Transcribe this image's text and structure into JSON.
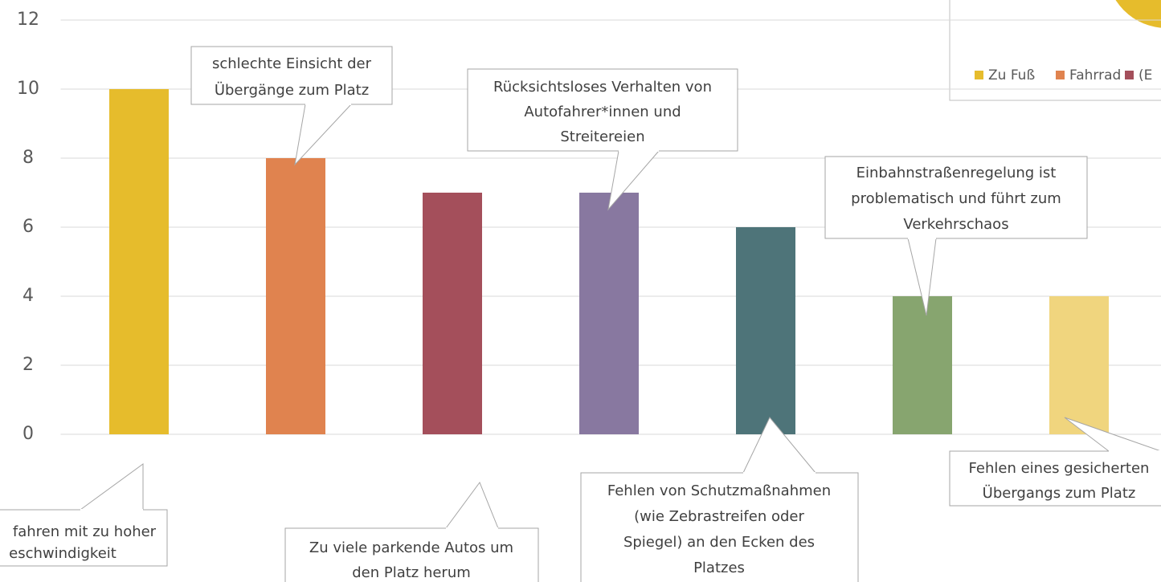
{
  "chart_data": {
    "type": "bar",
    "categories": [
      null,
      null,
      null,
      null,
      null,
      null,
      null
    ],
    "values": [
      10,
      8,
      7,
      7,
      6,
      4,
      4
    ],
    "colors": [
      "#e6bc2c",
      "#e0834f",
      "#a44f5b",
      "#8878a0",
      "#4e7479",
      "#87a56f",
      "#f0d57e"
    ],
    "ylim": [
      0,
      12
    ],
    "yticks": [
      0,
      2,
      4,
      6,
      8,
      10,
      12
    ],
    "grid": true,
    "annotations": [
      {
        "lines": [
          "fahren mit zu hoher",
          "eschwindigkeit"
        ]
      },
      {
        "lines": [
          "schlechte Einsicht der",
          "Übergänge zum Platz"
        ]
      },
      {
        "lines": [
          "Zu viele parkende Autos um",
          "den Platz herum"
        ]
      },
      {
        "lines": [
          "Rücksichtsloses Verhalten von",
          "Autofahrer*innen und",
          "Streitereien"
        ]
      },
      {
        "lines": [
          "Fehlen von Schutzmaßnahmen",
          "(wie Zebrastreifen oder",
          "Spiegel) an den Ecken des",
          "Platzes"
        ]
      },
      {
        "lines": [
          "Einbahnstraßenregelung ist",
          "problematisch und führt zum",
          "Verkehrschaos"
        ]
      },
      {
        "lines": [
          "Fehlen eines gesicherten",
          "Übergangs zum Platz"
        ]
      }
    ],
    "legend": [
      {
        "name": "Zu Fuß",
        "color": "#e6bc2c"
      },
      {
        "name": "Fahrrad",
        "color": "#e0834f"
      },
      {
        "name": "(E",
        "color": "#a44f5b"
      }
    ]
  }
}
